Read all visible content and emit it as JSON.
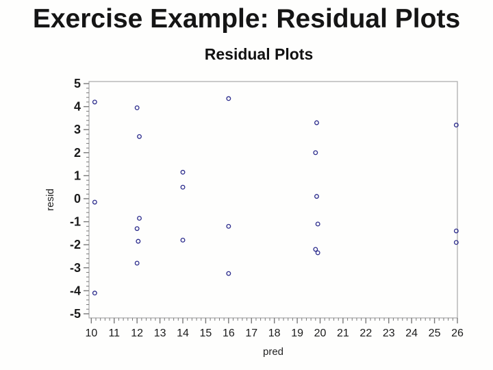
{
  "slide": {
    "title": "Exercise Example: Residual Plots"
  },
  "chart_data": {
    "type": "scatter",
    "title": "Residual Plots",
    "xlabel": "pred",
    "ylabel": "resid",
    "x_ticks": [
      10,
      11,
      12,
      13,
      14,
      15,
      16,
      17,
      18,
      19,
      20,
      21,
      22,
      23,
      24,
      25,
      26
    ],
    "y_ticks": [
      5,
      4,
      3,
      2,
      1,
      0,
      -1,
      -2,
      -3,
      -4,
      -5
    ],
    "xlim": [
      9.9,
      26.0
    ],
    "ylim": [
      -5.18,
      5.09
    ],
    "minor_tick_step": 0.2,
    "grid": false,
    "legend": "none",
    "marker": {
      "shape": "open-circle",
      "color": "#2b2b8c"
    },
    "colors": {
      "frame": "#a8a8a8",
      "tick": "#787878",
      "tick_label": "#1a1a1a",
      "axis_label": "#222222"
    },
    "points": [
      [
        10.15,
        4.2
      ],
      [
        10.15,
        -0.15
      ],
      [
        10.15,
        -4.1
      ],
      [
        12.0,
        3.95
      ],
      [
        12.1,
        2.7
      ],
      [
        12.1,
        -0.85
      ],
      [
        12.0,
        -1.3
      ],
      [
        12.05,
        -1.85
      ],
      [
        12.0,
        -2.8
      ],
      [
        14.0,
        1.15
      ],
      [
        14.0,
        0.5
      ],
      [
        14.0,
        -1.8
      ],
      [
        16.0,
        4.35
      ],
      [
        16.0,
        -1.2
      ],
      [
        16.0,
        -3.25
      ],
      [
        19.85,
        3.3
      ],
      [
        19.8,
        2.0
      ],
      [
        19.85,
        0.1
      ],
      [
        19.9,
        -1.1
      ],
      [
        19.8,
        -2.2
      ],
      [
        19.9,
        -2.35
      ],
      [
        25.95,
        3.2
      ],
      [
        25.95,
        -1.4
      ],
      [
        25.95,
        -1.9
      ]
    ]
  }
}
